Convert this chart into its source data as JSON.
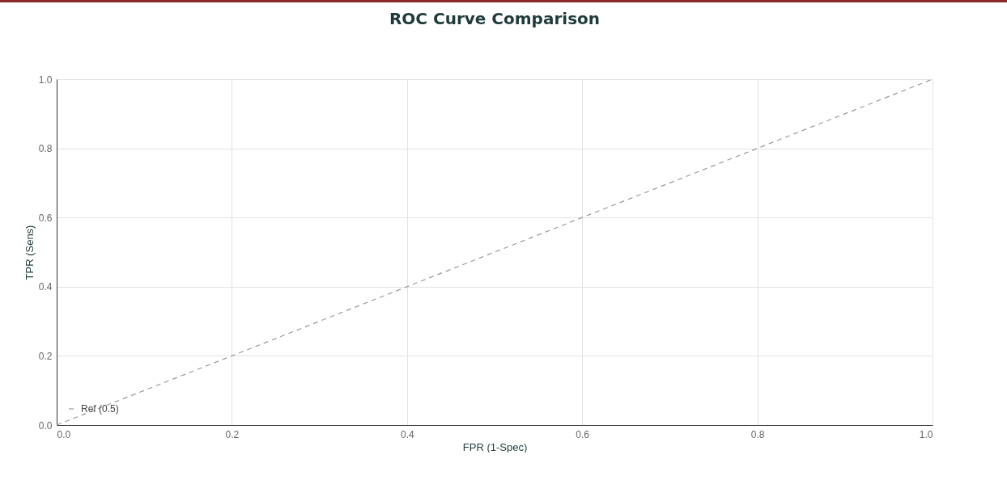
{
  "chart_data": {
    "type": "line",
    "title": "ROC Curve Comparison",
    "xlabel": "FPR (1-Spec)",
    "ylabel": "TPR (Sens)",
    "series": [
      {
        "name": "Ref (0.5)",
        "color": "#999999",
        "x": [
          0,
          1
        ],
        "values": [
          0,
          1
        ],
        "line_style": "dashed"
      }
    ],
    "xlim": [
      0,
      1
    ],
    "ylim": [
      0,
      1
    ],
    "xticks": [
      {
        "value": 0,
        "label": "0.0"
      },
      {
        "value": 0.2,
        "label": "0.2"
      },
      {
        "value": 0.4,
        "label": "0.4"
      },
      {
        "value": 0.6,
        "label": "0.6"
      },
      {
        "value": 0.8,
        "label": "0.8"
      },
      {
        "value": 1,
        "label": "1.0"
      }
    ],
    "yticks": [
      {
        "value": 0,
        "label": "0.0"
      },
      {
        "value": 0.2,
        "label": "0.2"
      },
      {
        "value": 0.4,
        "label": "0.4"
      },
      {
        "value": 0.6,
        "label": "0.6"
      },
      {
        "value": 0.8,
        "label": "0.8"
      },
      {
        "value": 1,
        "label": "1.0"
      }
    ],
    "grid": true,
    "legend": "bottom left",
    "marker": "none"
  }
}
